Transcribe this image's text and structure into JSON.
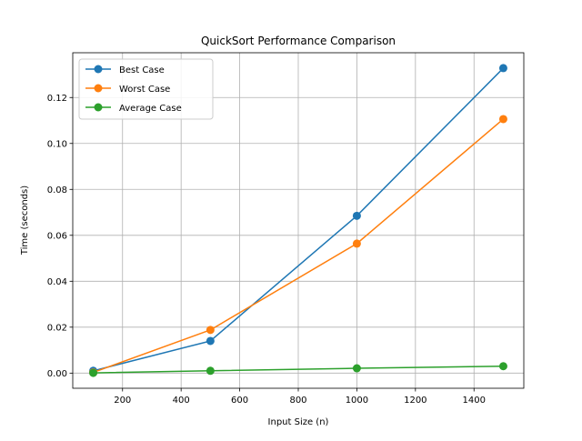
{
  "chart_data": {
    "type": "line",
    "title": "QuickSort Performance Comparison",
    "xlabel": "Input Size (n)",
    "ylabel": "Time (seconds)",
    "xlim": [
      30,
      1570
    ],
    "ylim": [
      -0.0066,
      0.1395
    ],
    "xticks": [
      200,
      400,
      600,
      800,
      1000,
      1200,
      1400
    ],
    "xtick_labels": [
      "200",
      "400",
      "600",
      "800",
      "1000",
      "1200",
      "1400"
    ],
    "yticks": [
      0.0,
      0.02,
      0.04,
      0.06,
      0.08,
      0.1,
      0.12
    ],
    "ytick_labels": [
      "0.00",
      "0.02",
      "0.04",
      "0.06",
      "0.08",
      "0.10",
      "0.12"
    ],
    "grid": true,
    "legend_position": "top-left",
    "x": [
      100,
      500,
      1000,
      1500
    ],
    "series": [
      {
        "name": "Best Case",
        "color": "#1f77b4",
        "values": [
          0.001,
          0.014,
          0.0685,
          0.1328
        ]
      },
      {
        "name": "Worst Case",
        "color": "#ff7f0e",
        "values": [
          0.0003,
          0.0188,
          0.0564,
          0.1106
        ]
      },
      {
        "name": "Average Case",
        "color": "#2ca02c",
        "values": [
          0.0001,
          0.001,
          0.0021,
          0.003
        ]
      }
    ]
  }
}
